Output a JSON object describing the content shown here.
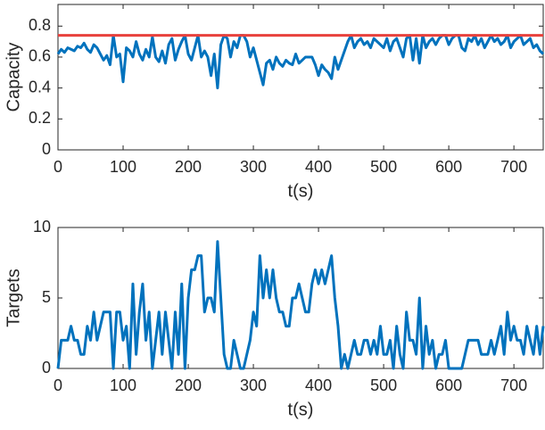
{
  "chart_data": [
    {
      "type": "line",
      "xlabel": "t(s)",
      "ylabel": "Capacity",
      "x": [
        0,
        5,
        10,
        15,
        20,
        25,
        30,
        35,
        40,
        45,
        50,
        55,
        60,
        65,
        70,
        75,
        80,
        85,
        90,
        95,
        100,
        105,
        110,
        115,
        120,
        125,
        130,
        135,
        140,
        145,
        150,
        155,
        160,
        165,
        170,
        175,
        180,
        185,
        190,
        195,
        200,
        205,
        210,
        215,
        220,
        225,
        230,
        235,
        240,
        245,
        250,
        255,
        260,
        265,
        270,
        275,
        280,
        285,
        290,
        295,
        300,
        305,
        310,
        315,
        320,
        325,
        330,
        335,
        340,
        345,
        350,
        355,
        360,
        365,
        370,
        375,
        380,
        385,
        390,
        395,
        400,
        405,
        410,
        415,
        420,
        425,
        430,
        435,
        440,
        445,
        450,
        455,
        460,
        465,
        470,
        475,
        480,
        485,
        490,
        495,
        500,
        505,
        510,
        515,
        520,
        525,
        530,
        535,
        540,
        545,
        550,
        555,
        560,
        565,
        570,
        575,
        580,
        585,
        590,
        595,
        600,
        605,
        610,
        615,
        620,
        625,
        630,
        635,
        640,
        645,
        650,
        655,
        660,
        665,
        670,
        675,
        680,
        685,
        690,
        695,
        700,
        705,
        710,
        715,
        720,
        725,
        730,
        735,
        740,
        745
      ],
      "series": [
        {
          "color": "#0072bd",
          "values": [
            0.62,
            0.65,
            0.63,
            0.66,
            0.65,
            0.64,
            0.67,
            0.66,
            0.69,
            0.65,
            0.63,
            0.68,
            0.66,
            0.62,
            0.58,
            0.61,
            0.55,
            0.74,
            0.6,
            0.62,
            0.44,
            0.66,
            0.64,
            0.6,
            0.7,
            0.62,
            0.58,
            0.65,
            0.6,
            0.73,
            0.6,
            0.57,
            0.64,
            0.56,
            0.68,
            0.72,
            0.58,
            0.65,
            0.7,
            0.74,
            0.62,
            0.58,
            0.66,
            0.74,
            0.6,
            0.64,
            0.6,
            0.48,
            0.62,
            0.4,
            0.68,
            0.74,
            0.72,
            0.6,
            0.7,
            0.66,
            0.74,
            0.74,
            0.7,
            0.6,
            0.66,
            0.58,
            0.5,
            0.42,
            0.56,
            0.58,
            0.52,
            0.6,
            0.56,
            0.54,
            0.58,
            0.56,
            0.55,
            0.62,
            0.56,
            0.58,
            0.6,
            0.6,
            0.6,
            0.55,
            0.48,
            0.55,
            0.52,
            0.5,
            0.46,
            0.6,
            0.52,
            0.58,
            0.64,
            0.7,
            0.74,
            0.66,
            0.7,
            0.72,
            0.68,
            0.7,
            0.66,
            0.72,
            0.7,
            0.68,
            0.66,
            0.72,
            0.64,
            0.7,
            0.72,
            0.66,
            0.6,
            0.72,
            0.74,
            0.58,
            0.72,
            0.56,
            0.74,
            0.66,
            0.7,
            0.72,
            0.68,
            0.72,
            0.74,
            0.74,
            0.68,
            0.72,
            0.74,
            0.74,
            0.66,
            0.64,
            0.72,
            0.7,
            0.74,
            0.68,
            0.72,
            0.66,
            0.7,
            0.74,
            0.7,
            0.72,
            0.68,
            0.7,
            0.74,
            0.66,
            0.7,
            0.72,
            0.74,
            0.68,
            0.7,
            0.72,
            0.66,
            0.68,
            0.64,
            0.62
          ]
        },
        {
          "color": "#e8413c",
          "x": [
            0,
            745
          ],
          "values": [
            0.74,
            0.74
          ]
        }
      ],
      "xlim": [
        0,
        745
      ],
      "xticks": [
        0,
        100,
        200,
        300,
        400,
        500,
        600,
        700
      ],
      "ylim": [
        0,
        0.94
      ],
      "yticks": [
        0,
        0.2,
        0.4,
        0.6,
        0.8
      ]
    },
    {
      "type": "line",
      "xlabel": "t(s)",
      "ylabel": "Targets",
      "x": [
        0,
        5,
        10,
        15,
        20,
        25,
        30,
        35,
        40,
        45,
        50,
        55,
        60,
        65,
        70,
        75,
        80,
        85,
        90,
        95,
        100,
        105,
        110,
        115,
        120,
        125,
        130,
        135,
        140,
        145,
        150,
        155,
        160,
        165,
        170,
        175,
        180,
        185,
        190,
        195,
        200,
        205,
        210,
        215,
        220,
        225,
        230,
        235,
        240,
        245,
        250,
        255,
        260,
        265,
        270,
        275,
        280,
        285,
        290,
        295,
        300,
        305,
        310,
        315,
        320,
        325,
        330,
        335,
        340,
        345,
        350,
        355,
        360,
        365,
        370,
        375,
        380,
        385,
        390,
        395,
        400,
        405,
        410,
        415,
        420,
        425,
        430,
        435,
        440,
        445,
        450,
        455,
        460,
        465,
        470,
        475,
        480,
        485,
        490,
        495,
        500,
        505,
        510,
        515,
        520,
        525,
        530,
        535,
        540,
        545,
        550,
        555,
        560,
        565,
        570,
        575,
        580,
        585,
        590,
        595,
        600,
        605,
        610,
        615,
        620,
        625,
        630,
        635,
        640,
        645,
        650,
        655,
        660,
        665,
        670,
        675,
        680,
        685,
        690,
        695,
        700,
        705,
        710,
        715,
        720,
        725,
        730,
        735,
        740,
        745
      ],
      "series": [
        {
          "color": "#0072bd",
          "values": [
            0,
            2,
            2,
            2,
            3,
            2,
            2,
            1,
            1,
            3,
            2,
            4,
            2,
            3,
            4,
            4,
            4,
            0,
            4,
            4,
            2,
            3,
            0,
            6,
            1,
            4,
            6,
            2,
            4,
            0,
            2,
            4,
            1,
            4,
            2,
            0,
            4,
            1,
            6,
            0,
            5,
            7,
            7,
            8,
            8,
            4,
            5,
            5,
            4,
            9,
            5,
            1,
            0,
            0,
            2,
            1,
            0,
            0,
            1,
            2,
            4,
            3,
            8,
            5,
            7,
            5,
            7,
            5,
            4,
            4,
            3,
            3,
            5,
            5,
            6,
            5,
            4,
            4,
            6,
            7,
            6,
            7,
            6,
            7,
            8,
            5,
            3,
            0,
            1,
            0,
            1,
            2,
            1,
            1,
            2,
            2,
            1,
            2,
            1,
            3,
            1,
            1,
            2,
            0,
            3,
            1,
            0,
            4,
            2,
            2,
            1,
            5,
            0,
            3,
            1,
            2,
            0,
            1,
            1,
            2,
            0,
            0,
            0,
            0,
            0,
            1,
            2,
            2,
            2,
            2,
            1,
            1,
            1,
            2,
            1,
            2,
            3,
            1,
            4,
            2,
            3,
            2,
            2,
            1,
            3,
            2,
            1,
            3,
            1,
            3
          ]
        }
      ],
      "xlim": [
        0,
        745
      ],
      "xticks": [
        0,
        100,
        200,
        300,
        400,
        500,
        600,
        700
      ],
      "ylim": [
        0,
        10
      ],
      "yticks": [
        0,
        5,
        10
      ]
    }
  ]
}
